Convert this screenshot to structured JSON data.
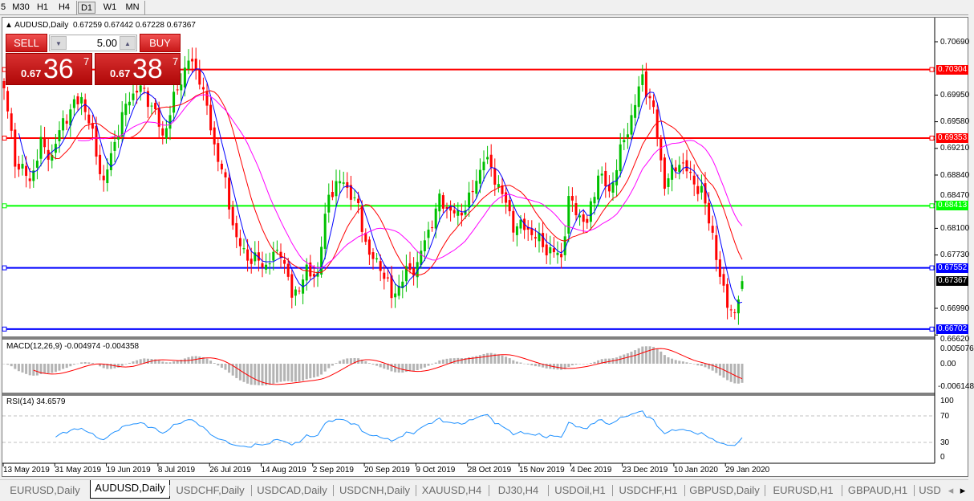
{
  "toolbar": {
    "timeframes": [
      "5",
      "M30",
      "H1",
      "H4",
      "D1",
      "W1",
      "MN"
    ],
    "active": "D1"
  },
  "header": {
    "symbol": "AUDUSD,Daily",
    "open": "0.67259",
    "high": "0.67442",
    "low": "0.67228",
    "close": "0.67367"
  },
  "trade_panel": {
    "sell_label": "SELL",
    "buy_label": "BUY",
    "lot": "5.00",
    "sell_prefix": "0.67",
    "sell_big": "36",
    "sell_sup": "7",
    "buy_prefix": "0.67",
    "buy_big": "38",
    "buy_sup": "7"
  },
  "price_axis": [
    "0.70690",
    "0.69950",
    "0.69580",
    "0.69210",
    "0.68840",
    "0.68470",
    "0.68100",
    "0.67730",
    "0.66990",
    "0.66620"
  ],
  "levels": [
    {
      "price": 0.70304,
      "label": "0.70304",
      "color": "#ff0000"
    },
    {
      "price": 0.69353,
      "label": "0.69353",
      "color": "#ff0000"
    },
    {
      "price": 0.68413,
      "label": "0.68413",
      "color": "#00ff00"
    },
    {
      "price": 0.67552,
      "label": "0.67552",
      "color": "#0000ff"
    },
    {
      "price": 0.66702,
      "label": "0.66702",
      "color": "#0000ff"
    }
  ],
  "current_price": {
    "label": "0.67367",
    "color": "#000000"
  },
  "macd": {
    "title": "MACD(12,26,9) -0.004974 -0.004358",
    "axis": [
      "0.005076",
      "0.00",
      "-0.006148"
    ]
  },
  "rsi": {
    "title": "RSI(14) 34.6579",
    "axis": [
      "100",
      "70",
      "30",
      "0"
    ]
  },
  "dates": [
    "13 May 2019",
    "31 May 2019",
    "19 Jun 2019",
    "8 Jul 2019",
    "26 Jul 2019",
    "14 Aug 2019",
    "2 Sep 2019",
    "20 Sep 2019",
    "9 Oct 2019",
    "28 Oct 2019",
    "15 Nov 2019",
    "4 Dec 2019",
    "23 Dec 2019",
    "10 Jan 2020",
    "29 Jan 2020"
  ],
  "tabs": [
    "EURUSD,Daily",
    "AUDUSD,Daily",
    "USDCHF,Daily",
    "USDCAD,Daily",
    "USDCNH,Daily",
    "XAUUSD,H4",
    "DJ30,H4",
    "USDOil,H1",
    "USDCHF,H1",
    "GBPUSD,Daily",
    "EURUSD,H1",
    "GBPAUD,H1",
    "USD"
  ],
  "active_tab": "AUDUSD,Daily",
  "chart_data": {
    "type": "candlestick",
    "bars": 201,
    "colors": {
      "up": "#00c000",
      "down": "#ff0000",
      "ma_fast": "#0000ff",
      "ma_mid": "#ff0000",
      "ma_slow": "#ff00ff",
      "macd_hist": "#b4b4b4",
      "macd_signal": "#ff0000",
      "rsi": "#1e90ff"
    },
    "close_path": [
      [
        0,
        0.70044
      ],
      [
        3,
        0.69041
      ],
      [
        7,
        0.68762
      ],
      [
        10,
        0.69264
      ],
      [
        13,
        0.69096
      ],
      [
        16,
        0.69598
      ],
      [
        21,
        0.69932
      ],
      [
        24,
        0.69375
      ],
      [
        27,
        0.68706
      ],
      [
        30,
        0.69319
      ],
      [
        34,
        0.69932
      ],
      [
        37,
        0.70044
      ],
      [
        40,
        0.69821
      ],
      [
        43,
        0.69375
      ],
      [
        47,
        0.70044
      ],
      [
        50,
        0.70434
      ],
      [
        53,
        0.70211
      ],
      [
        57,
        0.69264
      ],
      [
        60,
        0.68706
      ],
      [
        63,
        0.67926
      ],
      [
        66,
        0.67703
      ],
      [
        71,
        0.67592
      ],
      [
        75,
        0.67815
      ],
      [
        78,
        0.67146
      ],
      [
        82,
        0.6748
      ],
      [
        85,
        0.6748
      ],
      [
        88,
        0.68595
      ],
      [
        92,
        0.68762
      ],
      [
        96,
        0.68372
      ],
      [
        99,
        0.67703
      ],
      [
        102,
        0.67592
      ],
      [
        105,
        0.67146
      ],
      [
        109,
        0.6748
      ],
      [
        112,
        0.67592
      ],
      [
        114,
        0.67926
      ],
      [
        118,
        0.68483
      ],
      [
        123,
        0.68261
      ],
      [
        127,
        0.68595
      ],
      [
        130,
        0.69096
      ],
      [
        134,
        0.68706
      ],
      [
        138,
        0.68149
      ],
      [
        142,
        0.68093
      ],
      [
        147,
        0.67815
      ],
      [
        151,
        0.67703
      ],
      [
        153,
        0.68483
      ],
      [
        158,
        0.68149
      ],
      [
        161,
        0.68873
      ],
      [
        164,
        0.68595
      ],
      [
        167,
        0.69152
      ],
      [
        171,
        0.69821
      ],
      [
        173,
        0.70211
      ],
      [
        176,
        0.69709
      ],
      [
        179,
        0.68706
      ],
      [
        183,
        0.69041
      ],
      [
        186,
        0.68818
      ],
      [
        189,
        0.68595
      ],
      [
        192,
        0.68038
      ],
      [
        194,
        0.67369
      ],
      [
        197,
        0.66979
      ],
      [
        198,
        0.66868
      ],
      [
        200,
        0.67367
      ]
    ]
  }
}
